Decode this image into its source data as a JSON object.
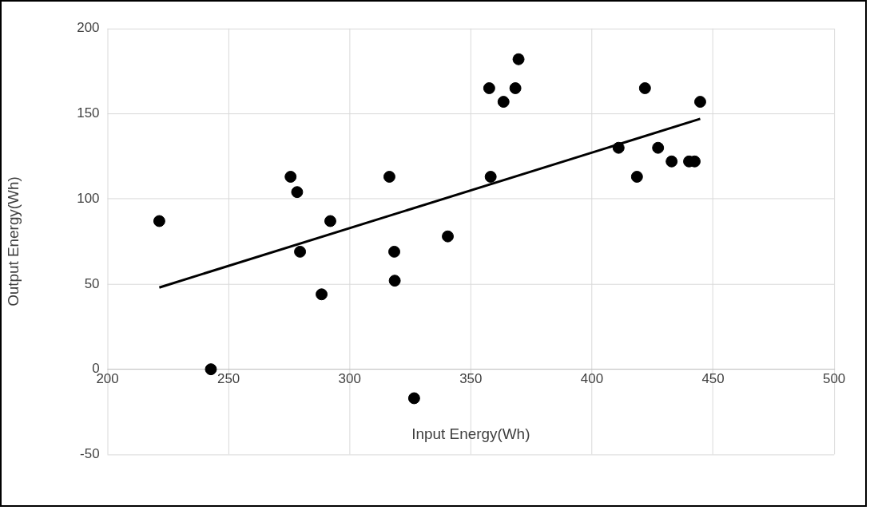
{
  "chart_data": {
    "type": "scatter",
    "xlabel": "Input Energy(Wh)",
    "ylabel": "Output Energy(Wh)",
    "xlim": [
      200,
      500
    ],
    "xticks": [
      200,
      250,
      300,
      350,
      400,
      450,
      500
    ],
    "ylim": [
      -50,
      200
    ],
    "yticks": [
      -50,
      0,
      50,
      100,
      150,
      200
    ],
    "grid": true,
    "series": [
      {
        "color": "#000000",
        "marker": "circle",
        "x": [
          221.4,
          242.7,
          275.6,
          278.3,
          279.5,
          288.4,
          292,
          316.4,
          318.6,
          318.4,
          326.6,
          340.5,
          357.6,
          358.2,
          363.5,
          368.4,
          369.7,
          411,
          418.6,
          421.9,
          427.3,
          432.9,
          440.1,
          442.4,
          444.7
        ],
        "values": [
          87,
          0,
          113,
          104,
          69,
          44,
          87,
          113,
          52,
          69,
          -17,
          78,
          165,
          113,
          157,
          165,
          182,
          130,
          113,
          165,
          130,
          122,
          122,
          122,
          157
        ]
      },
      {
        "type": "line",
        "color": "#000000",
        "line_style": "solid",
        "x": [
          221.4,
          444.7
        ],
        "values": [
          48,
          147
        ]
      }
    ]
  }
}
